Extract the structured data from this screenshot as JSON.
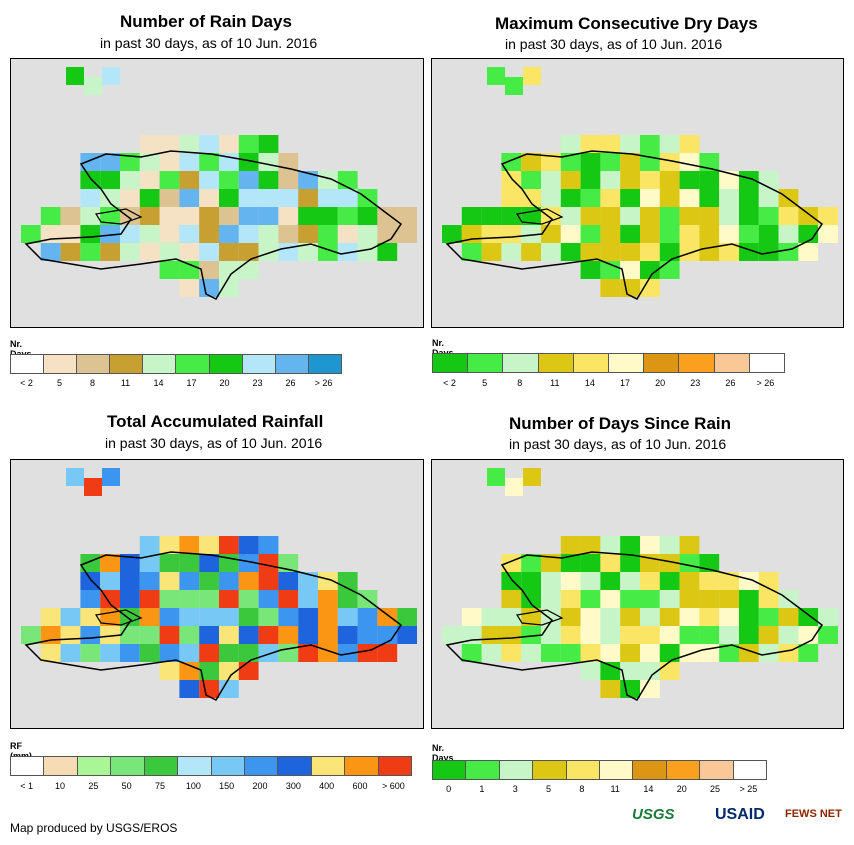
{
  "footer": "Map produced by USGS/EROS",
  "logos": {
    "usgs": "USGS",
    "usaid": "USAID",
    "fews": "FEWS NET"
  },
  "panels": [
    {
      "title": "Number of Rain Days",
      "subtitle": "in past 30 days, as of 10 Jun. 2016",
      "legend_name": "Nr. Days",
      "legend_labels": [
        "< 2",
        "5",
        "8",
        "11",
        "14",
        "17",
        "20",
        "23",
        "26",
        "> 26"
      ],
      "colors": [
        "#ffffff",
        "#f5e1c4",
        "#dcc391",
        "#c8a032",
        "#c8f5c8",
        "#46eb46",
        "#14c814",
        "#b4e6fa",
        "#64b4f0",
        "#1e96d2"
      ]
    },
    {
      "title": "Maximum Consecutive Dry Days",
      "subtitle": "in past 30 days, as of 10 Jun. 2016",
      "legend_name": "Nr. Days",
      "legend_labels": [
        "< 2",
        "5",
        "8",
        "11",
        "14",
        "17",
        "20",
        "23",
        "26",
        "> 26"
      ],
      "colors": [
        "#14c814",
        "#46eb46",
        "#c8f5c8",
        "#dcc814",
        "#fae664",
        "#fffac8",
        "#dc9614",
        "#faa01e",
        "#fac896",
        "#ffffff"
      ]
    },
    {
      "title": "Total Accumulated Rainfall",
      "subtitle": "in past 30 days, as of 10 Jun. 2016",
      "legend_name": "RF (mm)",
      "legend_labels": [
        "< 1",
        "10",
        "25",
        "50",
        "75",
        "100",
        "150",
        "200",
        "300",
        "400",
        "600",
        "> 600"
      ],
      "colors": [
        "#ffffff",
        "#f5dcb4",
        "#aaf596",
        "#78e678",
        "#3cc83c",
        "#b4e6fa",
        "#78c8f5",
        "#3c96f0",
        "#1e64dc",
        "#fae678",
        "#fa9614",
        "#f03c14"
      ]
    },
    {
      "title": "Number of Days Since Rain",
      "subtitle": "in past 30 days, as of 10 Jun. 2016",
      "legend_name": "Nr. Days",
      "legend_labels": [
        "0",
        "1",
        "3",
        "5",
        "8",
        "11",
        "14",
        "20",
        "25",
        "> 25"
      ],
      "colors": [
        "#14c814",
        "#46eb46",
        "#c8f5c8",
        "#dcc814",
        "#fae664",
        "#fffac8",
        "#dc9614",
        "#faa01e",
        "#fac896",
        "#ffffff"
      ]
    }
  ]
}
